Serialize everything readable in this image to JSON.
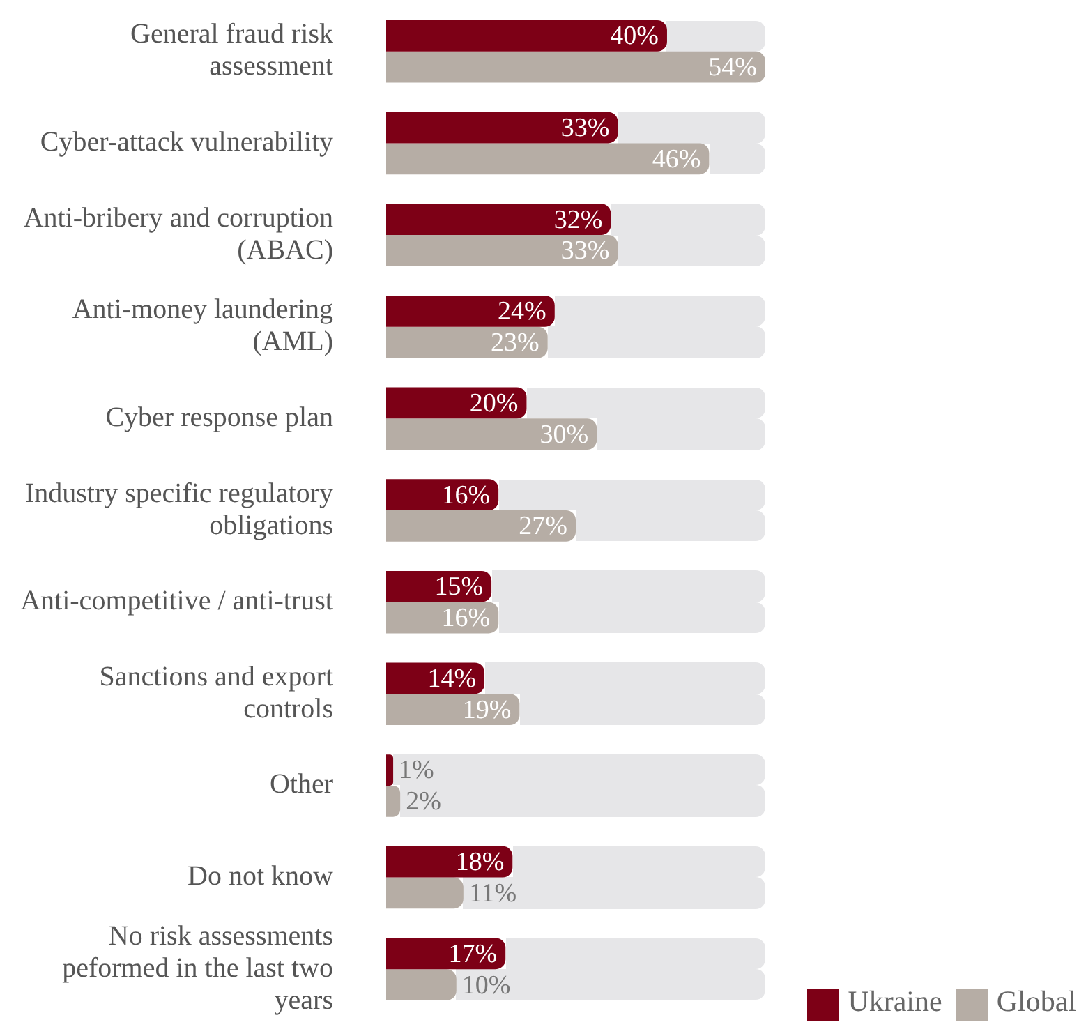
{
  "chart_data": {
    "type": "bar",
    "orientation": "horizontal",
    "categories": [
      "General fraud risk assessment",
      "Cyber-attack vulnerability",
      "Anti-bribery and corruption (ABAC)",
      "Anti-money laundering (AML)",
      "Cyber response plan",
      "Industry specific regulatory obligations",
      "Anti-competitive / anti-trust",
      "Sanctions and export controls",
      "Other",
      "Do not know",
      "No risk assessments peformed in the last two years"
    ],
    "series": [
      {
        "name": "Ukraine",
        "color": "#7d0016",
        "values": [
          40,
          33,
          32,
          24,
          20,
          16,
          15,
          14,
          1,
          18,
          17
        ],
        "value_labels": [
          "40%",
          "33%",
          "32%",
          "24%",
          "20%",
          "16%",
          "15%",
          "14%",
          "1%",
          "18%",
          "17%"
        ]
      },
      {
        "name": "Global",
        "color": "#b6ada5",
        "values": [
          54,
          46,
          33,
          23,
          30,
          27,
          16,
          19,
          2,
          11,
          10
        ],
        "value_labels": [
          "54%",
          "46%",
          "33%",
          "23%",
          "30%",
          "27%",
          "16%",
          "19%",
          "2%",
          "11%",
          "10%"
        ]
      }
    ],
    "legend": "bottom right",
    "tick_labels": "y"
  }
}
